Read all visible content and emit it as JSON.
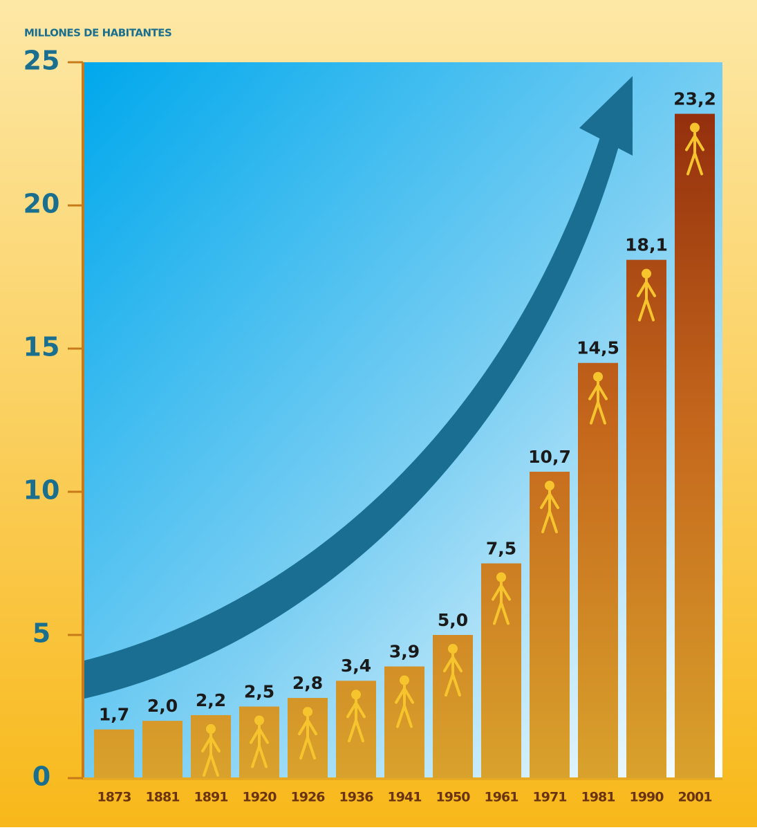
{
  "chart_data": {
    "type": "bar",
    "y_axis_label": "MILLONES DE HABITANTES",
    "categories": [
      "1873",
      "1881",
      "1891",
      "1920",
      "1926",
      "1936",
      "1941",
      "1950",
      "1961",
      "1971",
      "1981",
      "1990",
      "2001"
    ],
    "values": [
      1.7,
      2.0,
      2.2,
      2.5,
      2.8,
      3.4,
      3.9,
      5.0,
      7.5,
      10.7,
      14.5,
      18.1,
      23.2
    ],
    "value_labels": [
      "1,7",
      "2,0",
      "2,2",
      "2,5",
      "2,8",
      "3,4",
      "3,9",
      "5,0",
      "7,5",
      "10,7",
      "14,5",
      "18,1",
      "23,2"
    ],
    "ylim": [
      0,
      25
    ],
    "yticks": [
      0,
      5,
      10,
      15,
      20,
      25
    ],
    "color": "#a0421a"
  }
}
